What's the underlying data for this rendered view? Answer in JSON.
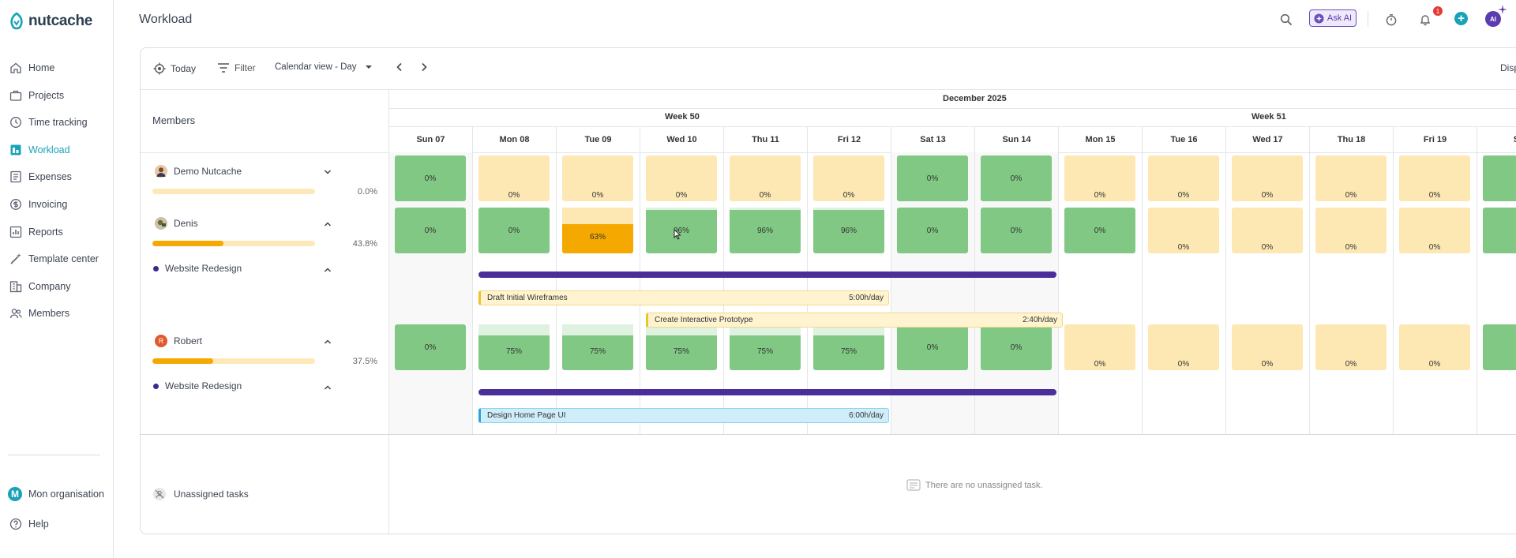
{
  "app": {
    "name": "nutcache"
  },
  "sidebar": {
    "items": [
      {
        "label": "Home",
        "icon": "home-icon"
      },
      {
        "label": "Projects",
        "icon": "briefcase-icon"
      },
      {
        "label": "Time tracking",
        "icon": "clock-icon"
      },
      {
        "label": "Workload",
        "icon": "workload-icon",
        "active": true
      },
      {
        "label": "Expenses",
        "icon": "expenses-icon"
      },
      {
        "label": "Invoicing",
        "icon": "dollar-icon"
      },
      {
        "label": "Reports",
        "icon": "chart-icon"
      },
      {
        "label": "Template center",
        "icon": "wand-icon"
      },
      {
        "label": "Company",
        "icon": "building-icon"
      },
      {
        "label": "Members",
        "icon": "users-icon"
      }
    ],
    "org": {
      "badge": "M",
      "label": "Mon organisation"
    },
    "help": "Help"
  },
  "header": {
    "title": "Workload",
    "ask_ai": "Ask AI",
    "notif_count": "1",
    "avatar": "AI"
  },
  "toolbar": {
    "today": "Today",
    "filter": "Filter",
    "view": "Calendar view - Day",
    "display": "Disp"
  },
  "members_title": "Members",
  "members": [
    {
      "name": "Demo Nutcache",
      "pct": "0.0%",
      "progress": 0.0
    },
    {
      "name": "Denis",
      "pct": "43.8%",
      "progress": 0.438,
      "project": "Website Redesign"
    },
    {
      "name": "Robert",
      "avatar": "R",
      "pct": "37.5%",
      "progress": 0.375,
      "project": "Website Redesign"
    }
  ],
  "unassigned": {
    "label": "Unassigned tasks",
    "empty_msg": "There are no unassigned task."
  },
  "calendar": {
    "month": "December 2025",
    "weeks": [
      "Week 50",
      "Week 51"
    ],
    "days": [
      "Sun 07",
      "Mon 08",
      "Tue 09",
      "Wed 10",
      "Thu 11",
      "Fri 12",
      "Sat 13",
      "Sun 14",
      "Mon 15",
      "Tue 16",
      "Wed 17",
      "Thu 18",
      "Fri 19",
      "Sa"
    ],
    "rows": [
      {
        "cells": [
          {
            "v": "0%",
            "t": "g"
          },
          {
            "v": "0%",
            "t": "e"
          },
          {
            "v": "0%",
            "t": "e"
          },
          {
            "v": "0%",
            "t": "e"
          },
          {
            "v": "0%",
            "t": "e"
          },
          {
            "v": "0%",
            "t": "e"
          },
          {
            "v": "0%",
            "t": "g"
          },
          {
            "v": "0%",
            "t": "g"
          },
          {
            "v": "0%",
            "t": "e"
          },
          {
            "v": "0%",
            "t": "e"
          },
          {
            "v": "0%",
            "t": "e"
          },
          {
            "v": "0%",
            "t": "e"
          },
          {
            "v": "0%",
            "t": "e"
          },
          {
            "v": "",
            "t": "g"
          }
        ]
      },
      {
        "cells": [
          {
            "v": "0%",
            "t": "g"
          },
          {
            "v": "0%",
            "t": "g"
          },
          {
            "v": "63%",
            "t": "o"
          },
          {
            "v": "96%",
            "t": "g"
          },
          {
            "v": "96%",
            "t": "g"
          },
          {
            "v": "96%",
            "t": "g"
          },
          {
            "v": "0%",
            "t": "g"
          },
          {
            "v": "0%",
            "t": "g"
          },
          {
            "v": "0%",
            "t": "g"
          },
          {
            "v": "0%",
            "t": "e"
          },
          {
            "v": "0%",
            "t": "e"
          },
          {
            "v": "0%",
            "t": "e"
          },
          {
            "v": "0%",
            "t": "e"
          },
          {
            "v": "",
            "t": "g"
          }
        ]
      },
      {
        "cells": [
          {
            "v": "0%",
            "t": "g"
          },
          {
            "v": "75%",
            "t": "p"
          },
          {
            "v": "75%",
            "t": "p"
          },
          {
            "v": "75%",
            "t": "p"
          },
          {
            "v": "75%",
            "t": "p"
          },
          {
            "v": "75%",
            "t": "p"
          },
          {
            "v": "0%",
            "t": "g"
          },
          {
            "v": "0%",
            "t": "g"
          },
          {
            "v": "0%",
            "t": "e"
          },
          {
            "v": "0%",
            "t": "e"
          },
          {
            "v": "0%",
            "t": "e"
          },
          {
            "v": "0%",
            "t": "e"
          },
          {
            "v": "0%",
            "t": "e"
          },
          {
            "v": "",
            "t": "g"
          }
        ]
      }
    ],
    "tasks": [
      {
        "name": "Draft Initial Wireframes",
        "rate": "5:00h/day",
        "color": "yellow"
      },
      {
        "name": "Create Interactive Prototype",
        "rate": "2:40h/day",
        "color": "yellow"
      },
      {
        "name": "Design Home Page UI",
        "rate": "6:00h/day",
        "color": "blue"
      }
    ]
  },
  "colors": {
    "accent": "#17a2b8",
    "project": "#4a2f9a",
    "green": "#80c883",
    "empty": "#fde8b4",
    "orange": "#f5a800"
  }
}
